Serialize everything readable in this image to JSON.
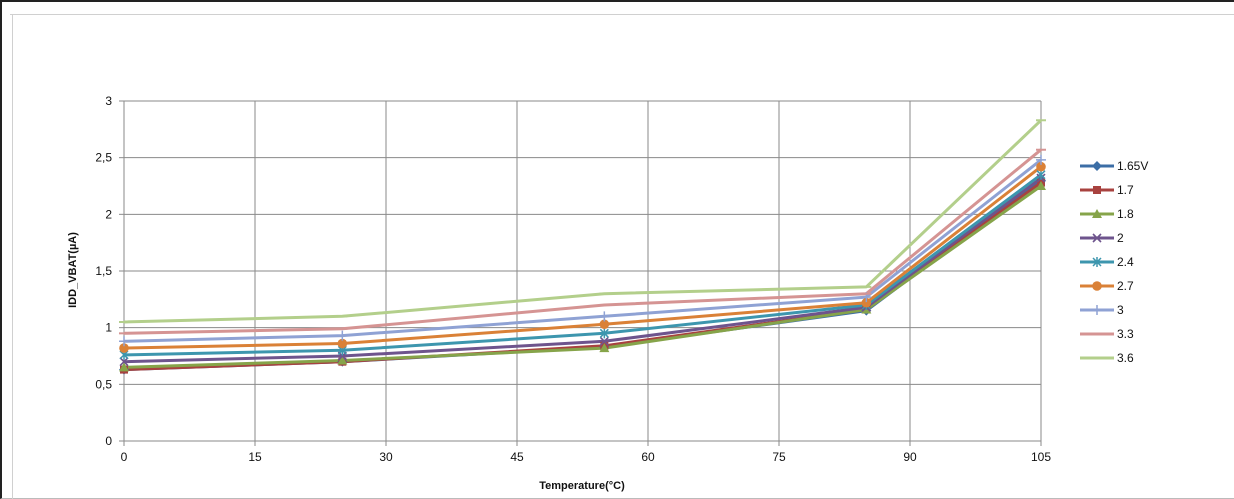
{
  "chart_data": {
    "type": "line",
    "title": "",
    "xlabel": "Temperature(°C)",
    "ylabel": "IDD_VBAT(µA)",
    "x": [
      0,
      25,
      55,
      85,
      105
    ],
    "xlim": [
      0,
      105
    ],
    "ylim": [
      0,
      3
    ],
    "xticks": [
      "0",
      "15",
      "30",
      "45",
      "60",
      "75",
      "90",
      "105"
    ],
    "xtick_values": [
      0,
      15,
      30,
      45,
      60,
      75,
      90,
      105
    ],
    "yticks": [
      "0",
      "0,5",
      "1",
      "1,5",
      "2",
      "2,5",
      "3"
    ],
    "ytick_values": [
      0,
      0.5,
      1,
      1.5,
      2,
      2.5,
      3
    ],
    "grid": true,
    "legend_position": "right",
    "series": [
      {
        "name": "1.65V",
        "color": "#3c6ea6",
        "marker": "diamond",
        "values": [
          0.63,
          0.7,
          0.83,
          1.15,
          2.3
        ]
      },
      {
        "name": "1.7",
        "color": "#a8423f",
        "marker": "square",
        "values": [
          0.63,
          0.7,
          0.84,
          1.16,
          2.28
        ]
      },
      {
        "name": "1.8",
        "color": "#86a44a",
        "marker": "triangle",
        "values": [
          0.65,
          0.71,
          0.82,
          1.16,
          2.25
        ]
      },
      {
        "name": "2",
        "color": "#6e548d",
        "marker": "x",
        "values": [
          0.7,
          0.75,
          0.88,
          1.18,
          2.32
        ]
      },
      {
        "name": "2.4",
        "color": "#3d96ae",
        "marker": "star",
        "values": [
          0.76,
          0.8,
          0.95,
          1.2,
          2.35
        ]
      },
      {
        "name": "2.7",
        "color": "#da8137",
        "marker": "circle",
        "values": [
          0.82,
          0.86,
          1.03,
          1.22,
          2.42
        ]
      },
      {
        "name": "3",
        "color": "#8fa2d4",
        "marker": "plus",
        "values": [
          0.88,
          0.93,
          1.1,
          1.27,
          2.48
        ]
      },
      {
        "name": "3.3",
        "color": "#d59493",
        "marker": "dash",
        "values": [
          0.95,
          0.99,
          1.2,
          1.3,
          2.57
        ]
      },
      {
        "name": "3.6",
        "color": "#b3cf8b",
        "marker": "dash",
        "values": [
          1.05,
          1.1,
          1.3,
          1.36,
          2.83
        ]
      }
    ]
  }
}
